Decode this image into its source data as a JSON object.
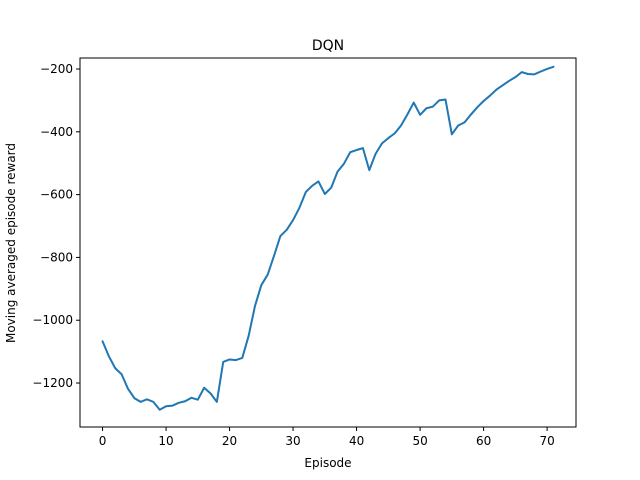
{
  "chart_data": {
    "type": "line",
    "title": "DQN",
    "xlabel": "Episode",
    "ylabel": "Moving averaged episode reward",
    "xlim": [
      -3.55,
      74.55
    ],
    "ylim": [
      -1340,
      -165
    ],
    "xticks": [
      0,
      10,
      20,
      30,
      40,
      50,
      60,
      70
    ],
    "yticks": [
      -1200,
      -1000,
      -800,
      -600,
      -400,
      -200
    ],
    "xtick_labels": [
      "0",
      "10",
      "20",
      "30",
      "40",
      "50",
      "60",
      "70"
    ],
    "ytick_labels": [
      "−1200",
      "−1000",
      "−800",
      "−600",
      "−400",
      "−200"
    ],
    "grid": false,
    "line_color": "#1f77b4",
    "series": [
      {
        "x": [
          0,
          1,
          2,
          3,
          4,
          5,
          6,
          7,
          8,
          9,
          10,
          11,
          12,
          13,
          14,
          15,
          16,
          17,
          18,
          19,
          20,
          21,
          22,
          23,
          24,
          25,
          26,
          27,
          28,
          29,
          30,
          31,
          32,
          33,
          34,
          35,
          36,
          37,
          38,
          39,
          40,
          41,
          42,
          43,
          44,
          45,
          46,
          47,
          48,
          49,
          50,
          51,
          52,
          53,
          54,
          55,
          56,
          57,
          58,
          59,
          60,
          61,
          62,
          63,
          64,
          65,
          66,
          67,
          68,
          69,
          70,
          71
        ],
        "y": [
          -1067,
          -1115,
          -1153,
          -1172,
          -1218,
          -1248,
          -1260,
          -1252,
          -1260,
          -1285,
          -1274,
          -1272,
          -1263,
          -1258,
          -1247,
          -1253,
          -1215,
          -1233,
          -1260,
          -1133,
          -1125,
          -1127,
          -1120,
          -1050,
          -955,
          -888,
          -855,
          -795,
          -732,
          -712,
          -681,
          -642,
          -592,
          -572,
          -558,
          -598,
          -578,
          -527,
          -502,
          -465,
          -458,
          -452,
          -522,
          -470,
          -437,
          -420,
          -405,
          -380,
          -345,
          -307,
          -346,
          -325,
          -320,
          -300,
          -297,
          -408,
          -380,
          -370,
          -345,
          -322,
          -302,
          -285,
          -266,
          -252,
          -238,
          -226,
          -210,
          -216,
          -217,
          -208,
          -200,
          -193
        ]
      }
    ]
  }
}
